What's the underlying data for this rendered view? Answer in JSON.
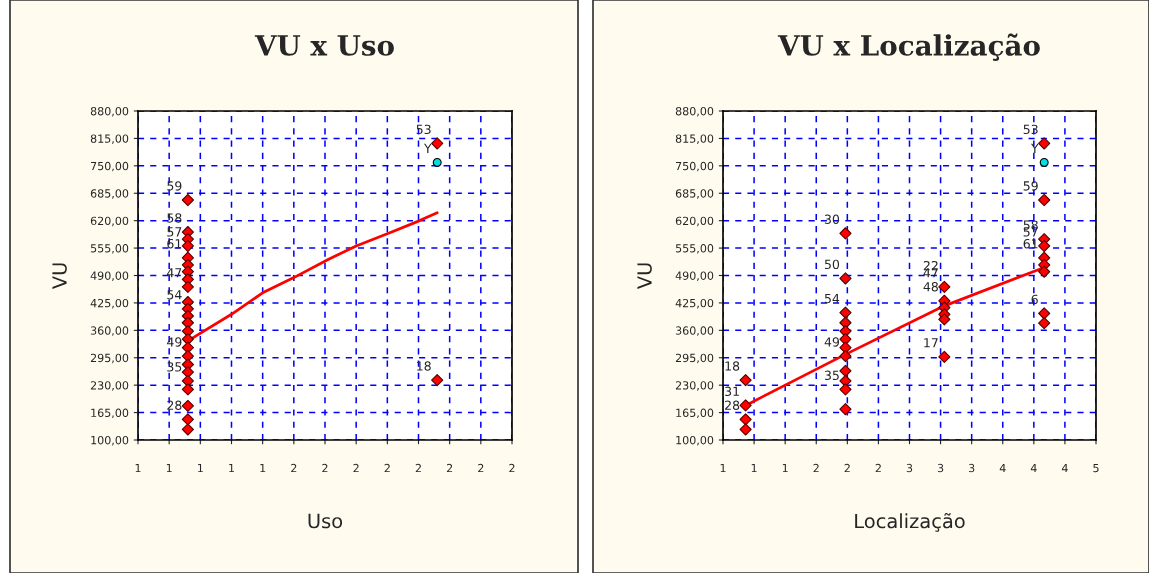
{
  "chart_data": [
    {
      "type": "scatter",
      "title": "VU x Uso",
      "xlabel": "Uso",
      "ylabel": "VU",
      "xlim": [
        1.0,
        2.2
      ],
      "xticks": [
        {
          "value": 1.0,
          "label": "1"
        },
        {
          "value": 1.1,
          "label": "1"
        },
        {
          "value": 1.2,
          "label": "1"
        },
        {
          "value": 1.3,
          "label": "1"
        },
        {
          "value": 1.4,
          "label": "1"
        },
        {
          "value": 1.5,
          "label": "2"
        },
        {
          "value": 1.6,
          "label": "2"
        },
        {
          "value": 1.7,
          "label": "2"
        },
        {
          "value": 1.8,
          "label": "2"
        },
        {
          "value": 1.9,
          "label": "2"
        },
        {
          "value": 2.0,
          "label": "2"
        },
        {
          "value": 2.1,
          "label": "2"
        },
        {
          "value": 2.2,
          "label": "2"
        }
      ],
      "ylim": [
        100,
        880
      ],
      "yticks": [
        {
          "value": 100,
          "label": "100,00"
        },
        {
          "value": 165,
          "label": "165,00"
        },
        {
          "value": 230,
          "label": "230,00"
        },
        {
          "value": 295,
          "label": "295,00"
        },
        {
          "value": 360,
          "label": "360,00"
        },
        {
          "value": 425,
          "label": "425,00"
        },
        {
          "value": 490,
          "label": "490,00"
        },
        {
          "value": 555,
          "label": "555,00"
        },
        {
          "value": 620,
          "label": "620,00"
        },
        {
          "value": 685,
          "label": "685,00"
        },
        {
          "value": 750,
          "label": "750,00"
        },
        {
          "value": 815,
          "label": "815,00"
        },
        {
          "value": 880,
          "label": "880,00"
        }
      ],
      "grid": true,
      "series": [
        {
          "color": "#ff0000",
          "marker": "diamond",
          "x": [
            1.16,
            1.16,
            1.16,
            1.16,
            1.16,
            1.16,
            1.16,
            1.16,
            1.16,
            1.16,
            1.16,
            1.16,
            1.16,
            1.16,
            1.16,
            1.16,
            1.16,
            1.16,
            1.16,
            1.16,
            1.16,
            1.16,
            1.16,
            1.16,
            1.96,
            1.96
          ],
          "values": [
            669,
            593,
            576,
            560,
            532,
            515,
            499,
            481,
            463,
            427,
            411,
            394,
            378,
            358,
            339,
            319,
            299,
            279,
            261,
            240,
            220,
            181,
            149,
            125,
            803,
            242
          ]
        },
        {
          "color": "#00e0e0",
          "marker": "circle",
          "x": [
            1.96
          ],
          "values": [
            758
          ]
        },
        {
          "type": "line",
          "color": "#ff0000",
          "x": [
            1.16,
            1.3,
            1.4,
            1.5,
            1.61,
            1.7,
            1.81,
            1.9,
            1.96
          ],
          "values": [
            335,
            398,
            449,
            485,
            528,
            560,
            592,
            619,
            639
          ]
        }
      ],
      "annotations": [
        {
          "text": "59",
          "x": 1.16,
          "y": 669
        },
        {
          "text": "58",
          "x": 1.16,
          "y": 593
        },
        {
          "text": "57",
          "x": 1.16,
          "y": 560
        },
        {
          "text": "61",
          "x": 1.16,
          "y": 532
        },
        {
          "text": "47",
          "x": 1.16,
          "y": 463
        },
        {
          "text": "54",
          "x": 1.16,
          "y": 411
        },
        {
          "text": "49",
          "x": 1.16,
          "y": 299
        },
        {
          "text": "35",
          "x": 1.16,
          "y": 240
        },
        {
          "text": "28",
          "x": 1.16,
          "y": 149
        },
        {
          "text": "53",
          "x": 1.96,
          "y": 803
        },
        {
          "text": "Y",
          "x": 1.96,
          "y": 758
        },
        {
          "text": "18",
          "x": 1.96,
          "y": 242
        }
      ]
    },
    {
      "type": "scatter",
      "title": "VU x Localização",
      "xlabel": "Localização",
      "ylabel": "VU",
      "xlim": [
        0.75,
        4.71
      ],
      "xticks": [
        {
          "value": 0.75,
          "label": "1"
        },
        {
          "value": 1.08,
          "label": "1"
        },
        {
          "value": 1.41,
          "label": "1"
        },
        {
          "value": 1.74,
          "label": "2"
        },
        {
          "value": 2.07,
          "label": "2"
        },
        {
          "value": 2.4,
          "label": "2"
        },
        {
          "value": 2.73,
          "label": "3"
        },
        {
          "value": 3.06,
          "label": "3"
        },
        {
          "value": 3.39,
          "label": "3"
        },
        {
          "value": 3.72,
          "label": "4"
        },
        {
          "value": 4.05,
          "label": "4"
        },
        {
          "value": 4.38,
          "label": "4"
        },
        {
          "value": 4.71,
          "label": "5"
        }
      ],
      "ylim": [
        100,
        880
      ],
      "yticks": [
        {
          "value": 100,
          "label": "100,00"
        },
        {
          "value": 165,
          "label": "165,00"
        },
        {
          "value": 230,
          "label": "230,00"
        },
        {
          "value": 295,
          "label": "295,00"
        },
        {
          "value": 360,
          "label": "360,00"
        },
        {
          "value": 425,
          "label": "425,00"
        },
        {
          "value": 490,
          "label": "490,00"
        },
        {
          "value": 555,
          "label": "555,00"
        },
        {
          "value": 620,
          "label": "620,00"
        },
        {
          "value": 685,
          "label": "685,00"
        },
        {
          "value": 750,
          "label": "750,00"
        },
        {
          "value": 815,
          "label": "815,00"
        },
        {
          "value": 880,
          "label": "880,00"
        }
      ],
      "grid": true,
      "series": [
        {
          "color": "#ff0000",
          "marker": "diamond",
          "x": [
            0.99,
            0.99,
            0.99,
            0.99,
            2.05,
            2.05,
            2.05,
            2.05,
            2.05,
            2.05,
            2.05,
            2.05,
            2.05,
            2.05,
            2.05,
            2.05,
            3.1,
            3.1,
            3.1,
            3.1,
            3.1,
            3.1,
            4.16,
            4.16,
            4.16,
            4.16,
            4.16,
            4.16,
            4.16,
            4.16,
            4.16
          ],
          "values": [
            242,
            182,
            149,
            125,
            590,
            483,
            402,
            378,
            358,
            339,
            319,
            299,
            264,
            240,
            220,
            173,
            463,
            430,
            414,
            398,
            386,
            297,
            803,
            669,
            576,
            560,
            532,
            515,
            499,
            400,
            377
          ]
        },
        {
          "color": "#00e0e0",
          "marker": "circle",
          "x": [
            4.16
          ],
          "values": [
            758
          ]
        },
        {
          "type": "line",
          "color": "#ff0000",
          "x": [
            0.99,
            2.05,
            3.1,
            4.16
          ],
          "values": [
            182,
            303,
            418,
            509
          ]
        }
      ],
      "annotations": [
        {
          "text": "18",
          "x": 0.99,
          "y": 242
        },
        {
          "text": "31",
          "x": 0.99,
          "y": 182
        },
        {
          "text": "28",
          "x": 0.99,
          "y": 149
        },
        {
          "text": "30",
          "x": 2.05,
          "y": 590
        },
        {
          "text": "50",
          "x": 2.05,
          "y": 483
        },
        {
          "text": "54",
          "x": 2.05,
          "y": 402
        },
        {
          "text": "49",
          "x": 2.05,
          "y": 299
        },
        {
          "text": "35",
          "x": 2.05,
          "y": 220
        },
        {
          "text": "22",
          "x": 3.1,
          "y": 480
        },
        {
          "text": "47",
          "x": 3.1,
          "y": 463
        },
        {
          "text": "48",
          "x": 3.1,
          "y": 430
        },
        {
          "text": "17",
          "x": 3.1,
          "y": 297
        },
        {
          "text": "53",
          "x": 4.16,
          "y": 803
        },
        {
          "text": "Y",
          "x": 4.16,
          "y": 758
        },
        {
          "text": "59",
          "x": 4.16,
          "y": 669
        },
        {
          "text": "58",
          "x": 4.16,
          "y": 576
        },
        {
          "text": "57",
          "x": 4.16,
          "y": 560
        },
        {
          "text": "61",
          "x": 4.16,
          "y": 532
        },
        {
          "text": "6",
          "x": 4.16,
          "y": 400
        }
      ]
    }
  ]
}
